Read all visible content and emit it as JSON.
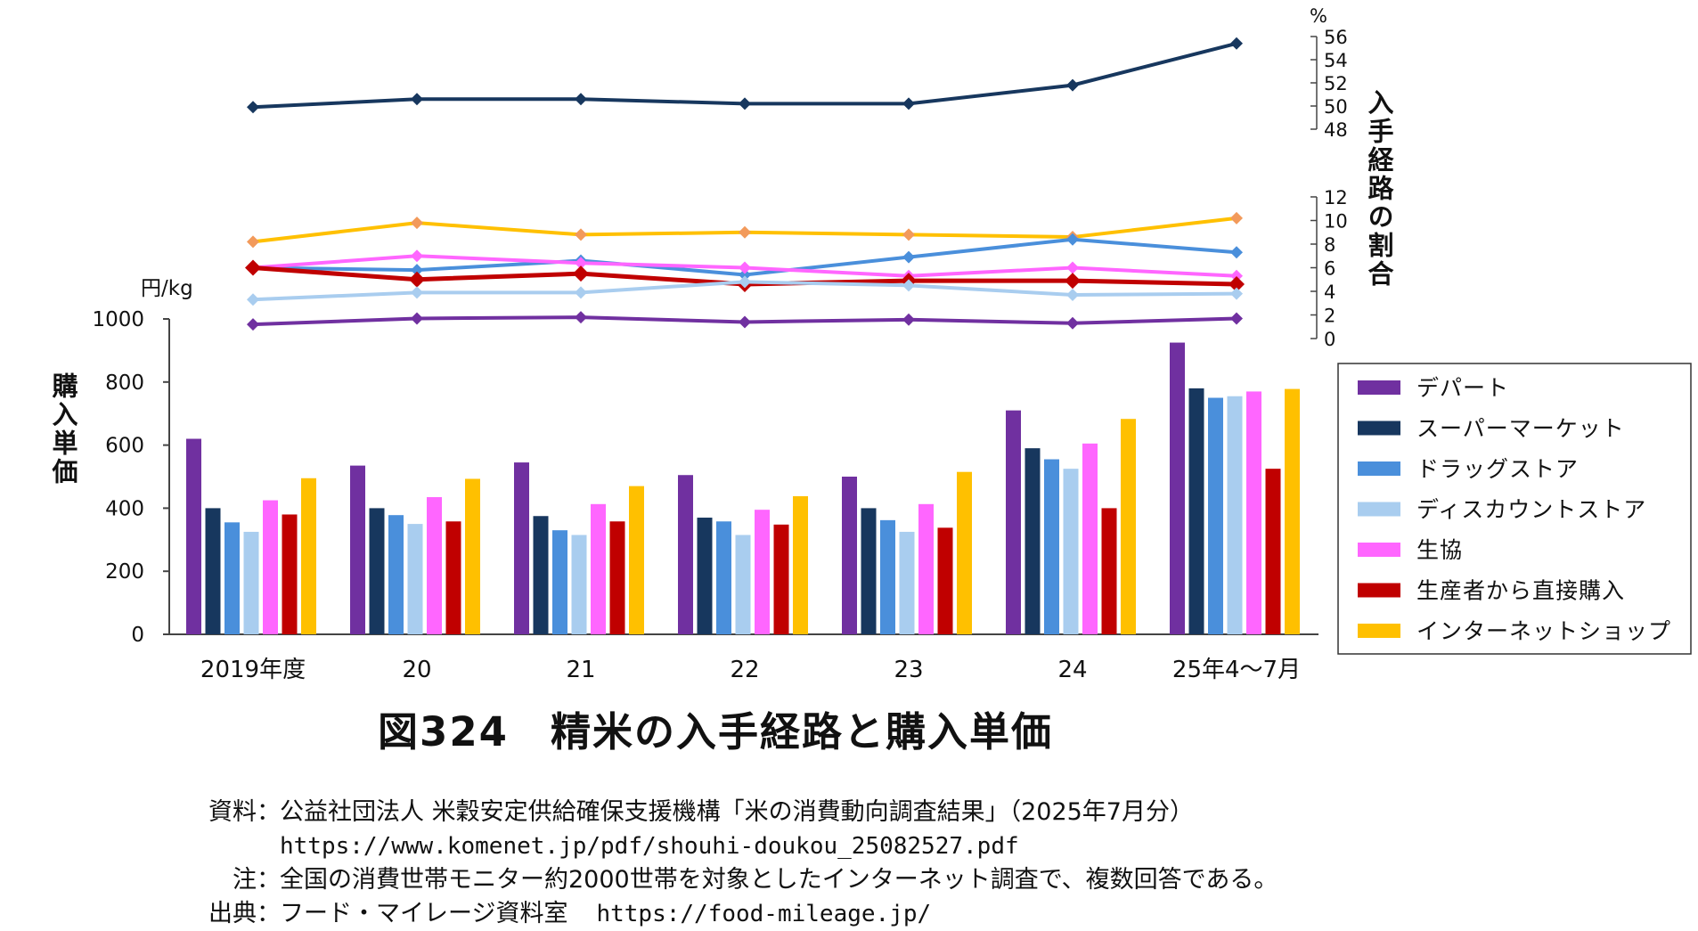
{
  "chart_data": [
    {
      "type": "bar",
      "title": "図324　精米の入手経路と購入単価",
      "ylabel": "購入単価",
      "yunit": "円/kg",
      "ylim": [
        0,
        1000
      ],
      "yticks": [
        "0",
        "200",
        "400",
        "600",
        "800",
        "1000"
      ],
      "categories": [
        "2019年度",
        "20",
        "21",
        "22",
        "23",
        "24",
        "25年4～7月"
      ],
      "series": [
        {
          "name": "デパート",
          "color": "#7030A0",
          "values": [
            620,
            535,
            545,
            505,
            500,
            710,
            925
          ]
        },
        {
          "name": "スーパーマーケット",
          "color": "#17375E",
          "values": [
            400,
            400,
            375,
            370,
            400,
            590,
            780
          ]
        },
        {
          "name": "ドラッグストア",
          "color": "#4A8FDB",
          "values": [
            355,
            378,
            330,
            358,
            362,
            555,
            750
          ]
        },
        {
          "name": "ディスカウントストア",
          "color": "#A9CDEF",
          "values": [
            325,
            350,
            315,
            315,
            325,
            525,
            755
          ]
        },
        {
          "name": "生協",
          "color": "#FF66FF",
          "values": [
            425,
            435,
            413,
            395,
            413,
            605,
            770
          ]
        },
        {
          "name": "生産者から直接購入",
          "color": "#C00000",
          "values": [
            380,
            358,
            358,
            348,
            338,
            400,
            525
          ]
        },
        {
          "name": "インターネットショップ",
          "color": "#FFC000",
          "values": [
            495,
            493,
            470,
            438,
            515,
            683,
            778
          ]
        }
      ]
    },
    {
      "type": "line",
      "ylabel": "入手経路の割合",
      "yunit": "%",
      "upper_axis": {
        "ylim": [
          48,
          56
        ],
        "ticks": [
          "48",
          "50",
          "52",
          "54",
          "56"
        ]
      },
      "lower_axis": {
        "ylim": [
          0,
          12
        ],
        "ticks": [
          "0",
          "2",
          "4",
          "6",
          "8",
          "10",
          "12"
        ]
      },
      "categories": [
        "2019年度",
        "20",
        "21",
        "22",
        "23",
        "24",
        "25年4～7月"
      ],
      "series": [
        {
          "name": "スーパーマーケット",
          "axis": "upper",
          "color": "#17375E",
          "values": [
            49.9,
            50.6,
            50.6,
            50.2,
            50.2,
            51.8,
            55.4
          ]
        },
        {
          "name": "インターネットショップ",
          "axis": "lower",
          "color": "#FFC000",
          "values": [
            8.2,
            9.8,
            8.8,
            9.0,
            8.8,
            8.6,
            10.2
          ]
        },
        {
          "name": "ドラッグストア",
          "axis": "lower",
          "color": "#4A8FDB",
          "values": [
            6.0,
            5.8,
            6.6,
            5.4,
            6.9,
            8.4,
            7.3
          ]
        },
        {
          "name": "生協",
          "axis": "lower",
          "color": "#FF66FF",
          "values": [
            6.0,
            7.0,
            6.4,
            6.0,
            5.3,
            6.0,
            5.3
          ]
        },
        {
          "name": "生産者から直接購入",
          "axis": "lower",
          "color": "#C00000",
          "values": [
            6.0,
            5.0,
            5.5,
            4.6,
            4.9,
            4.9,
            4.6
          ]
        },
        {
          "name": "ディスカウントストア",
          "axis": "lower",
          "color": "#A9CDEF",
          "values": [
            3.3,
            3.9,
            3.9,
            4.8,
            4.5,
            3.7,
            3.8
          ]
        },
        {
          "name": "デパート",
          "axis": "lower",
          "color": "#7030A0",
          "values": [
            1.2,
            1.7,
            1.8,
            1.4,
            1.6,
            1.3,
            1.7
          ]
        }
      ]
    }
  ],
  "notes": {
    "source_label": "資料",
    "source_text": "公益社団法人 米穀安定供給確保支援機構「米の消費動向調査結果」（2025年7月分）",
    "source_url": "https://www.komenet.jp/pdf/shouhi-doukou_25082527.pdf",
    "note_label": "注",
    "note_text": "全国の消費世帯モニター約2000世帯を対象としたインターネット調査で、複数回答である。",
    "origin_label": "出典",
    "origin_text": "フード・マイレージ資料室",
    "origin_url": "https://food-mileage.jp/",
    "separator": "："
  }
}
